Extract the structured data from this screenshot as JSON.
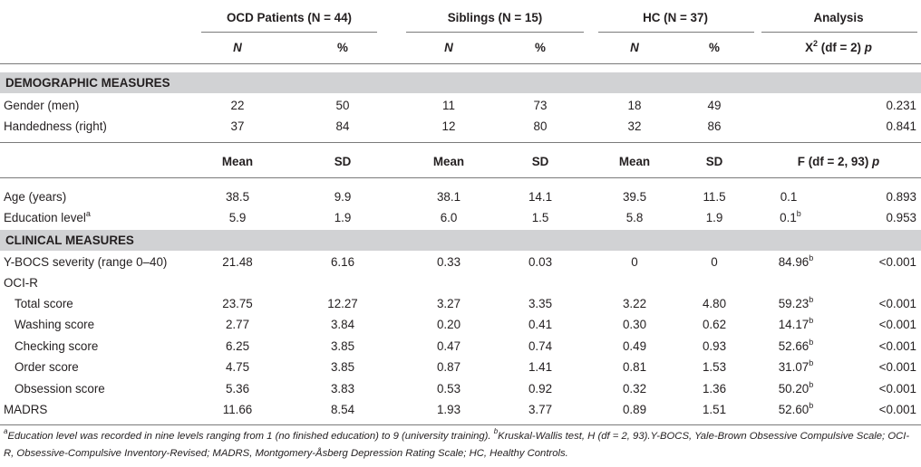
{
  "groups": [
    {
      "label": "OCD Patients (N = 44)"
    },
    {
      "label": "Siblings (N = 15)"
    },
    {
      "label": "HC (N = 37)"
    },
    {
      "label": "Analysis"
    }
  ],
  "subheader1": {
    "n": "N",
    "pct": "%",
    "chi_main": "X",
    "chi_sup": "2",
    "chi_rest": " (df = 2) ",
    "chi_p": "p"
  },
  "sections": {
    "demographic": "DEMOGRAPHIC MEASURES",
    "clinical": "CLINICAL MEASURES"
  },
  "demo_rows": [
    {
      "label": "Gender (men)",
      "vals": [
        "22",
        "50",
        "11",
        "73",
        "18",
        "49"
      ],
      "p": "0.231"
    },
    {
      "label": "Handedness (right)",
      "vals": [
        "37",
        "84",
        "12",
        "80",
        "32",
        "86"
      ],
      "p": "0.841"
    }
  ],
  "subheader2": {
    "mean": "Mean",
    "sd": "SD",
    "f_main": "F (df = 2, 93) ",
    "f_p": "p"
  },
  "cont_rows": [
    {
      "label": "Age (years)",
      "sup": "",
      "vals": [
        "38.5",
        "9.9",
        "38.1",
        "14.1",
        "39.5",
        "11.5"
      ],
      "stat": "0.1",
      "stat_sup": "",
      "p": "0.893"
    },
    {
      "label": "Education level",
      "sup": "a",
      "vals": [
        "5.9",
        "1.9",
        "6.0",
        "1.5",
        "5.8",
        "1.9"
      ],
      "stat": "0.1",
      "stat_sup": "b",
      "p": "0.953"
    }
  ],
  "clin_rows": [
    {
      "label": "Y-BOCS severity (range 0–40)",
      "vals": [
        "21.48",
        "6.16",
        "0.33",
        "0.03",
        "0",
        "0"
      ],
      "stat": "84.96",
      "stat_sup": "b",
      "p": "<0.001"
    },
    {
      "label": "OCI-R",
      "vals": [
        "",
        "",
        "",
        "",
        "",
        ""
      ],
      "stat": "",
      "stat_sup": "",
      "p": ""
    },
    {
      "label": "Total score",
      "vals": [
        "23.75",
        "12.27",
        "3.27",
        "3.35",
        "3.22",
        "4.80"
      ],
      "stat": "59.23",
      "stat_sup": "b",
      "p": "<0.001"
    },
    {
      "label": "Washing score",
      "vals": [
        "2.77",
        "3.84",
        "0.20",
        "0.41",
        "0.30",
        "0.62"
      ],
      "stat": "14.17",
      "stat_sup": "b",
      "p": "<0.001"
    },
    {
      "label": "Checking score",
      "vals": [
        "6.25",
        "3.85",
        "0.47",
        "0.74",
        "0.49",
        "0.93"
      ],
      "stat": "52.66",
      "stat_sup": "b",
      "p": "<0.001"
    },
    {
      "label": "Order score",
      "vals": [
        "4.75",
        "3.85",
        "0.87",
        "1.41",
        "0.81",
        "1.53"
      ],
      "stat": "31.07",
      "stat_sup": "b",
      "p": "<0.001"
    },
    {
      "label": "Obsession score",
      "vals": [
        "5.36",
        "3.83",
        "0.53",
        "0.92",
        "0.32",
        "1.36"
      ],
      "stat": "50.20",
      "stat_sup": "b",
      "p": "<0.001"
    },
    {
      "label": "MADRS",
      "vals": [
        "11.66",
        "8.54",
        "1.93",
        "3.77",
        "0.89",
        "1.51"
      ],
      "stat": "52.60",
      "stat_sup": "b",
      "p": "<0.001"
    }
  ],
  "footnote": {
    "a_mark": "a",
    "a_text": "Education level was recorded in nine levels ranging from 1 (no finished education) to 9 (university training). ",
    "b_mark": "b",
    "b_text": "Kruskal-Wallis test, H (df = 2, 93).Y-BOCS, Yale-Brown Obsessive Compulsive Scale; OCI-R, Obsessive-Compulsive Inventory-Revised; MADRS, Montgomery-Åsberg Depression Rating Scale; HC, Healthy Controls."
  }
}
